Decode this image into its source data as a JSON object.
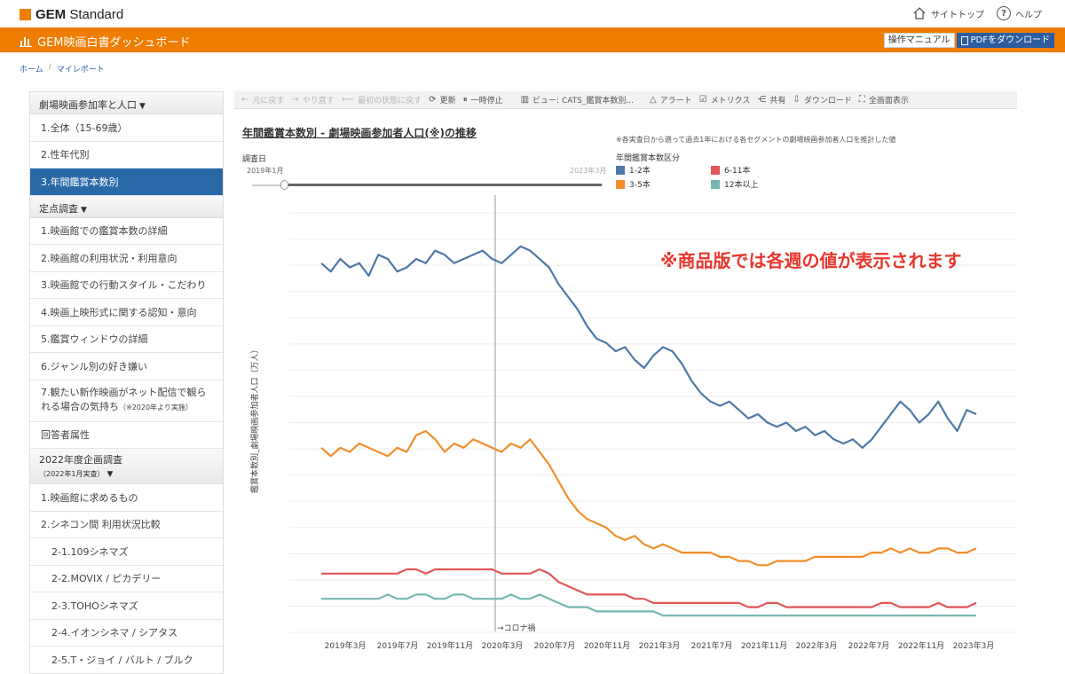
{
  "header": {
    "logo_bold": "GEM",
    "logo_rest": " Standard",
    "site_top": "サイトトップ",
    "help": "ヘルプ",
    "help_glyph": "?"
  },
  "appbar": {
    "title": "GEM映画白書ダッシュボード",
    "manual": "操作マニュアル",
    "pdf": "PDFをダウンロード"
  },
  "breadcrumb": {
    "home": "ホーム",
    "sep": "/",
    "current": "マイレポート"
  },
  "sidebar": {
    "section1": "劇場映画参加率と人口",
    "items1": [
      "1.全体（15-69歳）",
      "2.性年代別",
      "3.年間鑑賞本数別"
    ],
    "section2": "定点調査",
    "items2": [
      "1.映画館での鑑賞本数の詳細",
      "2.映画館の利用状況・利用意向",
      "3.映画館での行動スタイル・こだわり",
      "4.映画上映形式に関する認知・意向",
      "5.鑑賞ウィンドウの詳細",
      "6.ジャンル別の好き嫌い"
    ],
    "item7": "7.観たい新作映画がネット配信で観られる場合の気持ち",
    "item7_note": "（※2020年より実施）",
    "item8": "回答者属性",
    "section3": "2022年度企画調査",
    "section3_note": "（2022年1月実査）",
    "items3": [
      "1.映画館に求めるもの",
      "2.シネコン間 利用状況比較"
    ],
    "items3_sub": [
      "2-1.109シネマズ",
      "2-2.MOVIX / ピカデリー",
      "2-3.TOHOシネマズ",
      "2-4.イオンシネマ / シアタス",
      "2-5.T・ジョイ / バルト / ブルク"
    ],
    "caret": "▼"
  },
  "toolbar": {
    "undo": "元に戻す",
    "redo": "やり直す",
    "reset": "最初の状態に戻す",
    "refresh": "更新",
    "pause": "一時停止",
    "view": "ビュー: CATS_鑑賞本数別...",
    "alert": "アラート",
    "metrics": "メトリクス",
    "share": "共有",
    "download": "ダウンロード",
    "fullscreen": "全画面表示"
  },
  "chart_meta": {
    "title": "年間鑑賞本数別 - 劇場映画参加者人口(※)の推移",
    "note": "※各実査日から遡って過去1年における各セグメントの劇場映画参加者人口を推計した値",
    "legend_title": "年間鑑賞本数区分",
    "filter_label": "調査日",
    "filter_start": "2019年1月",
    "filter_end": "2023年3月",
    "overlay": "※商品版では各週の値が表示されます",
    "annotation": "→コロナ禍"
  },
  "chart_data": {
    "type": "line",
    "ylabel": "鑑賞本数別_劇場映画参加者人口（万人）",
    "x_ticks": [
      "2019年3月",
      "2019年7月",
      "2019年11月",
      "2020年3月",
      "2020年7月",
      "2020年11月",
      "2021年3月",
      "2021年7月",
      "2021年11月",
      "2022年3月",
      "2022年7月",
      "2022年11月",
      "2023年3月"
    ],
    "y_gridlines": 17,
    "annotation_x": "2020年3月",
    "series": [
      {
        "name": "1-2本",
        "color": "#4e79a7",
        "values": [
          0.88,
          0.86,
          0.89,
          0.87,
          0.88,
          0.85,
          0.9,
          0.89,
          0.86,
          0.87,
          0.89,
          0.88,
          0.91,
          0.9,
          0.88,
          0.89,
          0.9,
          0.91,
          0.89,
          0.88,
          0.9,
          0.92,
          0.91,
          0.89,
          0.87,
          0.83,
          0.8,
          0.77,
          0.73,
          0.7,
          0.69,
          0.67,
          0.68,
          0.65,
          0.63,
          0.66,
          0.68,
          0.67,
          0.64,
          0.6,
          0.57,
          0.55,
          0.54,
          0.55,
          0.53,
          0.51,
          0.52,
          0.5,
          0.49,
          0.5,
          0.48,
          0.49,
          0.47,
          0.48,
          0.46,
          0.45,
          0.46,
          0.44,
          0.46,
          0.49,
          0.52,
          0.55,
          0.53,
          0.5,
          0.52,
          0.55,
          0.51,
          0.48,
          0.53,
          0.52
        ]
      },
      {
        "name": "3-5本",
        "color": "#f28e2b",
        "values": [
          0.44,
          0.42,
          0.44,
          0.43,
          0.45,
          0.44,
          0.43,
          0.42,
          0.44,
          0.43,
          0.47,
          0.48,
          0.46,
          0.43,
          0.45,
          0.44,
          0.46,
          0.45,
          0.44,
          0.43,
          0.45,
          0.44,
          0.46,
          0.43,
          0.4,
          0.36,
          0.32,
          0.29,
          0.27,
          0.26,
          0.25,
          0.23,
          0.22,
          0.23,
          0.21,
          0.2,
          0.21,
          0.2,
          0.19,
          0.19,
          0.19,
          0.19,
          0.18,
          0.18,
          0.17,
          0.17,
          0.16,
          0.16,
          0.17,
          0.17,
          0.17,
          0.17,
          0.18,
          0.18,
          0.18,
          0.18,
          0.18,
          0.18,
          0.19,
          0.19,
          0.2,
          0.19,
          0.2,
          0.19,
          0.19,
          0.2,
          0.2,
          0.19,
          0.19,
          0.2
        ]
      },
      {
        "name": "6-11本",
        "color": "#e15759",
        "values": [
          0.14,
          0.14,
          0.14,
          0.14,
          0.14,
          0.14,
          0.14,
          0.14,
          0.14,
          0.15,
          0.15,
          0.14,
          0.15,
          0.15,
          0.15,
          0.15,
          0.15,
          0.15,
          0.15,
          0.14,
          0.14,
          0.14,
          0.14,
          0.15,
          0.14,
          0.12,
          0.11,
          0.1,
          0.09,
          0.09,
          0.09,
          0.09,
          0.09,
          0.08,
          0.08,
          0.07,
          0.07,
          0.07,
          0.07,
          0.07,
          0.07,
          0.07,
          0.07,
          0.07,
          0.07,
          0.06,
          0.06,
          0.07,
          0.07,
          0.06,
          0.06,
          0.06,
          0.06,
          0.06,
          0.06,
          0.06,
          0.06,
          0.06,
          0.06,
          0.07,
          0.07,
          0.06,
          0.06,
          0.06,
          0.06,
          0.07,
          0.06,
          0.06,
          0.06,
          0.07
        ]
      },
      {
        "name": "12本以上",
        "color": "#76b7b2",
        "values": [
          0.08,
          0.08,
          0.08,
          0.08,
          0.08,
          0.08,
          0.08,
          0.09,
          0.08,
          0.08,
          0.09,
          0.09,
          0.08,
          0.08,
          0.09,
          0.09,
          0.08,
          0.08,
          0.08,
          0.08,
          0.09,
          0.08,
          0.08,
          0.09,
          0.08,
          0.07,
          0.06,
          0.06,
          0.06,
          0.05,
          0.05,
          0.05,
          0.05,
          0.05,
          0.05,
          0.05,
          0.04,
          0.04,
          0.04,
          0.04,
          0.04,
          0.04,
          0.04,
          0.04,
          0.04,
          0.04,
          0.04,
          0.04,
          0.04,
          0.04,
          0.04,
          0.04,
          0.04,
          0.04,
          0.04,
          0.04,
          0.04,
          0.04,
          0.04,
          0.04,
          0.04,
          0.04,
          0.04,
          0.04,
          0.04,
          0.04,
          0.04,
          0.04,
          0.04,
          0.04
        ]
      }
    ]
  }
}
